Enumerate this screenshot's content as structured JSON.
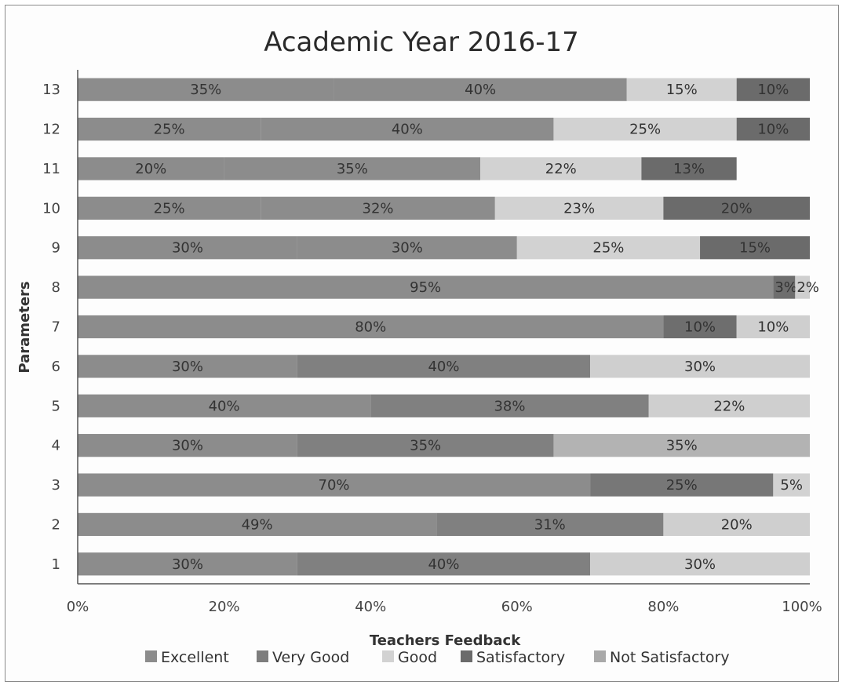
{
  "chart_data": {
    "type": "bar",
    "orientation": "horizontal",
    "stacked": "percent",
    "title": "Academic Year 2016-17",
    "xlabel": "Teachers Feedback",
    "ylabel": "Parameters",
    "xlim": [
      0,
      100
    ],
    "x_ticks": [
      "0%",
      "20%",
      "40%",
      "60%",
      "80%",
      "100%"
    ],
    "categories": [
      "1",
      "2",
      "3",
      "4",
      "5",
      "6",
      "7",
      "8",
      "9",
      "10",
      "11",
      "12",
      "13"
    ],
    "series": [
      {
        "name": "Excellent",
        "color": "#8c8c8c",
        "values": [
          30,
          49,
          70,
          30,
          40,
          30,
          80,
          95,
          30,
          25,
          20,
          25,
          35
        ]
      },
      {
        "name": "Very Good",
        "color": "#7d7d7d",
        "values": [
          40,
          31,
          25,
          35,
          38,
          40,
          10,
          3,
          30,
          32,
          35,
          40,
          40
        ]
      },
      {
        "name": "Good",
        "color": "#d2d2d2",
        "values": [
          30,
          20,
          5,
          35,
          22,
          30,
          10,
          2,
          25,
          23,
          22,
          25,
          15
        ]
      },
      {
        "name": "Satisfactory",
        "color": "#6b6b6b",
        "values": [
          0,
          0,
          0,
          0,
          0,
          0,
          0,
          0,
          15,
          20,
          13,
          10,
          10
        ]
      },
      {
        "name": "Not Satisfactory",
        "color": "#a9a9a9",
        "values": [
          0,
          0,
          0,
          0,
          0,
          0,
          0,
          0,
          0,
          0,
          0,
          0,
          0
        ]
      }
    ],
    "segment_colors": [
      [
        "#8c8c8c",
        "#808080",
        "#cfcfcf"
      ],
      [
        "#8c8c8c",
        "#808080",
        "#cfcfcf"
      ],
      [
        "#8c8c8c",
        "#777777",
        "#d2d2d2"
      ],
      [
        "#8c8c8c",
        "#808080",
        "#b3b3b3"
      ],
      [
        "#8c8c8c",
        "#808080",
        "#cfcfcf"
      ],
      [
        "#8c8c8c",
        "#808080",
        "#cfcfcf"
      ],
      [
        "#8c8c8c",
        "#6e6e6e",
        "#cfcfcf"
      ],
      [
        "#8c8c8c",
        "#6e6e6e",
        "#cfcfcf"
      ],
      [
        "#8c8c8c",
        "#8c8c8c",
        "#d2d2d2",
        "#6b6b6b"
      ],
      [
        "#8c8c8c",
        "#8c8c8c",
        "#d2d2d2",
        "#6b6b6b"
      ],
      [
        "#8c8c8c",
        "#8c8c8c",
        "#d2d2d2",
        "#6b6b6b"
      ],
      [
        "#8c8c8c",
        "#8c8c8c",
        "#d2d2d2",
        "#6b6b6b"
      ],
      [
        "#8c8c8c",
        "#8c8c8c",
        "#d2d2d2",
        "#6b6b6b"
      ]
    ],
    "grid": false,
    "legend_position": "bottom"
  }
}
